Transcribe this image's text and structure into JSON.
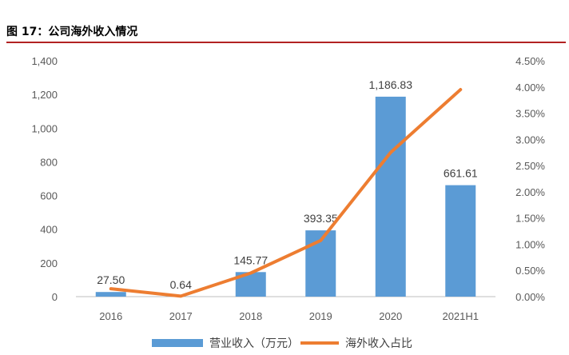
{
  "figure": {
    "title": "图 17：公司海外收入情况"
  },
  "chart_data": {
    "type": "bar",
    "categories": [
      "2016",
      "2017",
      "2018",
      "2019",
      "2020",
      "2021H1"
    ],
    "series": [
      {
        "name": "营业收入（万元）",
        "type": "bar",
        "axis": "left",
        "color": "#5b9bd5",
        "values": [
          27.5,
          0.64,
          145.77,
          393.35,
          1186.83,
          661.61
        ],
        "labels": [
          "27.50",
          "0.64",
          "145.77",
          "393.35",
          "1,186.83",
          "661.61"
        ]
      },
      {
        "name": "海外收入占比",
        "type": "line",
        "axis": "right",
        "color": "#ed7d31",
        "values": [
          0.0015,
          0.0001,
          0.0045,
          0.0107,
          0.0275,
          0.0395
        ]
      }
    ],
    "y_left": {
      "ylim": [
        0,
        1400
      ],
      "ticks": [
        0,
        200,
        400,
        600,
        800,
        1000,
        1200,
        1400
      ],
      "tick_labels": [
        "0",
        "200",
        "400",
        "600",
        "800",
        "1,000",
        "1,200",
        "1,400"
      ]
    },
    "y_right": {
      "ylim": [
        0,
        0.045
      ],
      "ticks": [
        0,
        0.005,
        0.01,
        0.015,
        0.02,
        0.025,
        0.03,
        0.035,
        0.04,
        0.045
      ],
      "tick_labels": [
        "0.00%",
        "0.50%",
        "1.00%",
        "1.50%",
        "2.00%",
        "2.50%",
        "3.00%",
        "3.50%",
        "4.00%",
        "4.50%"
      ]
    },
    "grid": false,
    "legend_position": "bottom"
  }
}
